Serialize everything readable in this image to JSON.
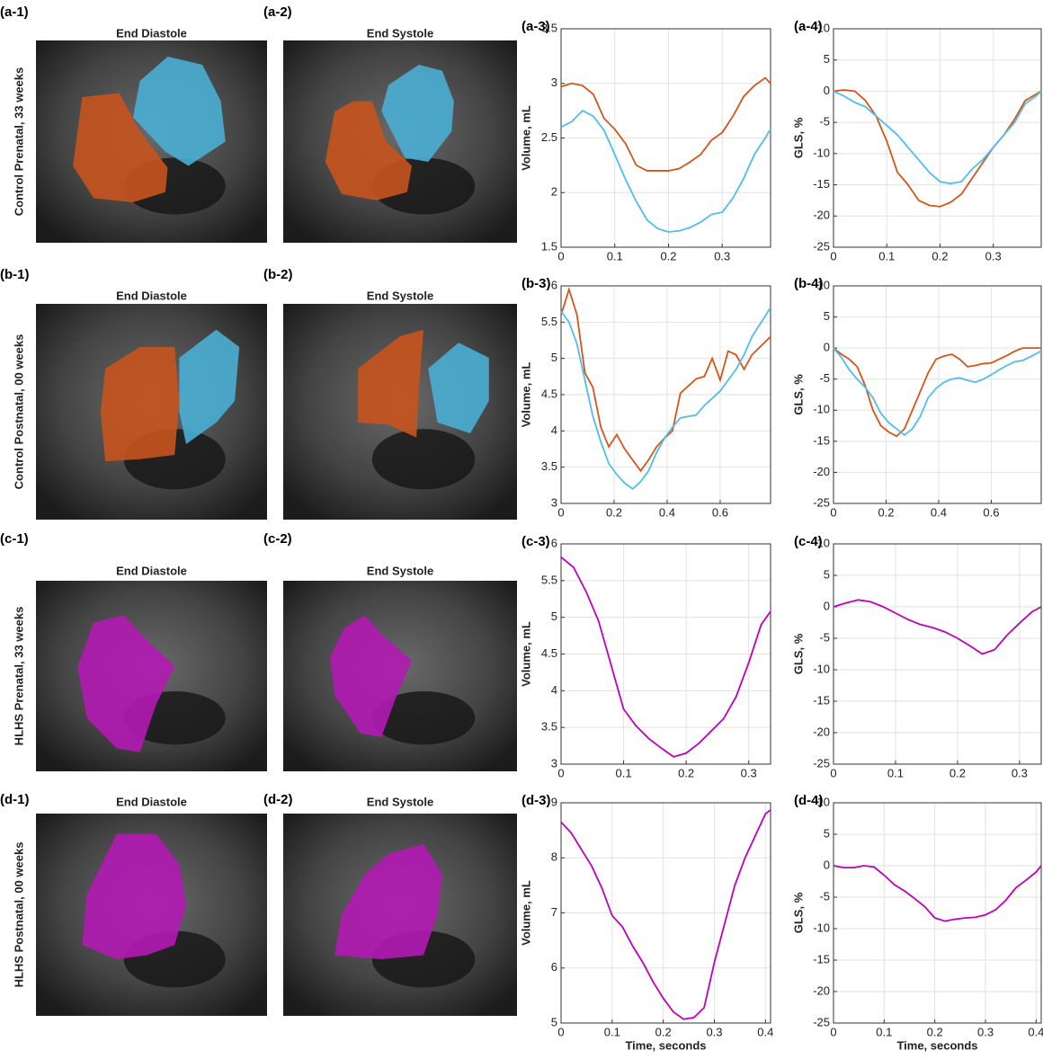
{
  "rows": [
    "Control Prenatal, 33 weeks",
    "Control Postnatal, 00 weeks",
    "HLHS Prenatal, 33 weeks",
    "HLHS Postnatal, 00 weeks"
  ],
  "images": [
    [
      {
        "label": "(a-1)",
        "title": "End Diastole"
      },
      {
        "label": "(a-2)",
        "title": "End Systole"
      }
    ],
    [
      {
        "label": "(b-1)",
        "title": "End Diastole"
      },
      {
        "label": "(b-2)",
        "title": "End Systole"
      }
    ],
    [
      {
        "label": "(c-1)",
        "title": "End Diastole"
      },
      {
        "label": "(c-2)",
        "title": "End Systole"
      }
    ],
    [
      {
        "label": "(d-1)",
        "title": "End Diastole"
      },
      {
        "label": "(d-2)",
        "title": "End Systole"
      }
    ]
  ],
  "chart_data": [
    {
      "type": "line",
      "label": "(a-3)",
      "ylabel": "Volume, mL",
      "x": [
        0,
        0.02,
        0.04,
        0.06,
        0.08,
        0.1,
        0.12,
        0.14,
        0.16,
        0.18,
        0.2,
        0.22,
        0.24,
        0.26,
        0.28,
        0.3,
        0.32,
        0.34,
        0.36,
        0.38,
        0.39
      ],
      "series": [
        {
          "color": "#d95319",
          "values": [
            2.97,
            3.0,
            2.98,
            2.9,
            2.68,
            2.58,
            2.45,
            2.25,
            2.2,
            2.2,
            2.2,
            2.22,
            2.28,
            2.35,
            2.48,
            2.55,
            2.7,
            2.88,
            2.98,
            3.05,
            3.0
          ]
        },
        {
          "color": "#4dbeee",
          "values": [
            2.6,
            2.65,
            2.75,
            2.7,
            2.57,
            2.35,
            2.12,
            1.92,
            1.75,
            1.67,
            1.64,
            1.65,
            1.68,
            1.73,
            1.8,
            1.82,
            1.95,
            2.13,
            2.35,
            2.5,
            2.58
          ]
        }
      ],
      "xlim": [
        0,
        0.39
      ],
      "xticks": [
        0,
        0.1,
        0.2,
        0.3
      ],
      "ylim": [
        1.5,
        3.5
      ],
      "yticks": [
        1.5,
        2,
        2.5,
        3,
        3.5
      ],
      "grid": true
    },
    {
      "type": "line",
      "label": "(a-4)",
      "ylabel": "GLS, %",
      "x": [
        0,
        0.02,
        0.04,
        0.06,
        0.08,
        0.1,
        0.12,
        0.14,
        0.16,
        0.18,
        0.2,
        0.22,
        0.24,
        0.26,
        0.28,
        0.3,
        0.32,
        0.34,
        0.36,
        0.38,
        0.39
      ],
      "series": [
        {
          "color": "#d95319",
          "values": [
            0,
            0.2,
            0,
            -1.5,
            -4,
            -8,
            -13,
            -15,
            -17.5,
            -18.3,
            -18.5,
            -17.8,
            -16.5,
            -14,
            -11.5,
            -9,
            -7,
            -4.5,
            -1.5,
            -0.5,
            0
          ]
        },
        {
          "color": "#4dbeee",
          "values": [
            0,
            -0.8,
            -1.8,
            -2.5,
            -4,
            -5.5,
            -7,
            -9,
            -11,
            -13,
            -14.5,
            -14.8,
            -14.5,
            -12.5,
            -11,
            -9,
            -7,
            -5,
            -2,
            -0.8,
            0
          ]
        }
      ],
      "xlim": [
        0,
        0.39
      ],
      "xticks": [
        0,
        0.1,
        0.2,
        0.3
      ],
      "ylim": [
        -25,
        10
      ],
      "yticks": [
        -25,
        -20,
        -15,
        -10,
        -5,
        0,
        5,
        10
      ],
      "grid": true
    },
    {
      "type": "line",
      "label": "(b-3)",
      "ylabel": "Volume, mL",
      "x": [
        0,
        0.03,
        0.06,
        0.09,
        0.12,
        0.15,
        0.18,
        0.21,
        0.24,
        0.27,
        0.3,
        0.33,
        0.36,
        0.39,
        0.42,
        0.45,
        0.48,
        0.51,
        0.54,
        0.57,
        0.6,
        0.63,
        0.66,
        0.69,
        0.72,
        0.79
      ],
      "series": [
        {
          "color": "#d95319",
          "values": [
            5.6,
            5.95,
            5.6,
            4.8,
            4.6,
            4.05,
            3.78,
            3.95,
            3.75,
            3.6,
            3.45,
            3.6,
            3.78,
            3.9,
            4.0,
            4.52,
            4.62,
            4.72,
            4.75,
            5.0,
            4.7,
            5.1,
            5.05,
            4.85,
            5.05,
            5.3
          ]
        },
        {
          "color": "#4dbeee",
          "values": [
            5.65,
            5.5,
            5.2,
            4.7,
            4.2,
            3.85,
            3.55,
            3.4,
            3.28,
            3.2,
            3.3,
            3.45,
            3.7,
            3.9,
            4.05,
            4.18,
            4.2,
            4.22,
            4.35,
            4.45,
            4.55,
            4.7,
            4.85,
            5.05,
            5.3,
            5.7
          ]
        }
      ],
      "xlim": [
        0,
        0.79
      ],
      "xticks": [
        0,
        0.2,
        0.4,
        0.6
      ],
      "ylim": [
        3,
        6
      ],
      "yticks": [
        3,
        3.5,
        4,
        4.5,
        5,
        5.5,
        6
      ],
      "grid": true
    },
    {
      "type": "line",
      "label": "(b-4)",
      "ylabel": "GLS, %",
      "x": [
        0,
        0.03,
        0.06,
        0.09,
        0.12,
        0.15,
        0.18,
        0.21,
        0.24,
        0.27,
        0.3,
        0.33,
        0.36,
        0.39,
        0.42,
        0.45,
        0.48,
        0.51,
        0.54,
        0.57,
        0.6,
        0.63,
        0.66,
        0.69,
        0.72,
        0.79
      ],
      "series": [
        {
          "color": "#d95319",
          "values": [
            0,
            -1,
            -1.8,
            -3,
            -6,
            -10,
            -12.5,
            -13.5,
            -14.2,
            -13,
            -10,
            -7,
            -4,
            -1.8,
            -1.3,
            -1.0,
            -1.8,
            -3,
            -2.8,
            -2.5,
            -2.4,
            -1.8,
            -1.2,
            -0.5,
            0,
            0
          ]
        },
        {
          "color": "#4dbeee",
          "values": [
            0,
            -1.5,
            -3.5,
            -5,
            -6.3,
            -8,
            -10.5,
            -12,
            -13,
            -14,
            -13,
            -11,
            -8,
            -6.5,
            -5.5,
            -5,
            -4.8,
            -5.2,
            -5.5,
            -5,
            -4.3,
            -3.5,
            -2.8,
            -2.2,
            -2,
            -0.5
          ]
        }
      ],
      "xlim": [
        0,
        0.79
      ],
      "xticks": [
        0,
        0.2,
        0.4,
        0.6
      ],
      "ylim": [
        -25,
        10
      ],
      "yticks": [
        -25,
        -20,
        -15,
        -10,
        -5,
        0,
        5,
        10
      ],
      "grid": true
    },
    {
      "type": "line",
      "label": "(c-3)",
      "ylabel": "Volume, mL",
      "x": [
        0,
        0.02,
        0.04,
        0.06,
        0.08,
        0.1,
        0.12,
        0.14,
        0.16,
        0.18,
        0.2,
        0.22,
        0.24,
        0.26,
        0.28,
        0.3,
        0.32,
        0.335
      ],
      "series": [
        {
          "color": "#bf00bf",
          "values": [
            5.82,
            5.68,
            5.35,
            4.95,
            4.35,
            3.75,
            3.52,
            3.35,
            3.22,
            3.1,
            3.15,
            3.28,
            3.45,
            3.62,
            3.92,
            4.38,
            4.9,
            5.08
          ]
        }
      ],
      "xlim": [
        0,
        0.335
      ],
      "xticks": [
        0,
        0.1,
        0.2,
        0.3
      ],
      "ylim": [
        3,
        6
      ],
      "yticks": [
        3,
        3.5,
        4,
        4.5,
        5,
        5.5,
        6
      ],
      "grid": true
    },
    {
      "type": "line",
      "label": "(c-4)",
      "ylabel": "GLS, %",
      "x": [
        0,
        0.02,
        0.04,
        0.06,
        0.08,
        0.1,
        0.12,
        0.14,
        0.16,
        0.18,
        0.2,
        0.22,
        0.24,
        0.26,
        0.28,
        0.3,
        0.32,
        0.335
      ],
      "series": [
        {
          "color": "#bf00bf",
          "values": [
            0,
            0.6,
            1.1,
            0.8,
            0,
            -1,
            -2,
            -2.8,
            -3.3,
            -4,
            -5,
            -6.2,
            -7.5,
            -6.8,
            -4.5,
            -2.6,
            -0.8,
            0
          ]
        }
      ],
      "xlim": [
        0,
        0.335
      ],
      "xticks": [
        0,
        0.1,
        0.2,
        0.3
      ],
      "ylim": [
        -25,
        10
      ],
      "yticks": [
        -25,
        -20,
        -15,
        -10,
        -5,
        0,
        5,
        10
      ],
      "grid": true
    },
    {
      "type": "line",
      "label": "(d-3)",
      "ylabel": "Volume, mL",
      "xlabel": "Time, seconds",
      "x": [
        0,
        0.02,
        0.04,
        0.06,
        0.08,
        0.1,
        0.12,
        0.14,
        0.16,
        0.18,
        0.2,
        0.22,
        0.24,
        0.26,
        0.28,
        0.3,
        0.32,
        0.34,
        0.36,
        0.38,
        0.4,
        0.41
      ],
      "series": [
        {
          "color": "#bf00bf",
          "values": [
            8.65,
            8.45,
            8.15,
            7.85,
            7.45,
            6.95,
            6.75,
            6.4,
            6.1,
            5.75,
            5.45,
            5.2,
            5.07,
            5.1,
            5.28,
            6.1,
            6.8,
            7.5,
            8.0,
            8.4,
            8.8,
            8.87
          ]
        }
      ],
      "xlim": [
        0,
        0.41
      ],
      "xticks": [
        0,
        0.1,
        0.2,
        0.3,
        0.4
      ],
      "ylim": [
        5,
        9
      ],
      "yticks": [
        5,
        6,
        7,
        8,
        9
      ],
      "grid": true
    },
    {
      "type": "line",
      "label": "(d-4)",
      "ylabel": "GLS, %",
      "xlabel": "Time, seconds",
      "x": [
        0,
        0.02,
        0.04,
        0.06,
        0.08,
        0.1,
        0.12,
        0.14,
        0.16,
        0.18,
        0.2,
        0.22,
        0.24,
        0.26,
        0.28,
        0.3,
        0.32,
        0.34,
        0.36,
        0.38,
        0.4,
        0.41
      ],
      "series": [
        {
          "color": "#bf00bf",
          "values": [
            0,
            -0.3,
            -0.3,
            0,
            -0.2,
            -1.5,
            -3,
            -4,
            -5.2,
            -6.5,
            -8.3,
            -8.8,
            -8.5,
            -8.3,
            -8.2,
            -7.8,
            -7,
            -5.5,
            -3.5,
            -2.3,
            -1,
            0
          ]
        }
      ],
      "xlim": [
        0,
        0.41
      ],
      "xticks": [
        0,
        0.1,
        0.2,
        0.3,
        0.4
      ],
      "ylim": [
        -25,
        10
      ],
      "yticks": [
        -25,
        -20,
        -15,
        -10,
        -5,
        0,
        5,
        10
      ],
      "grid": true
    }
  ]
}
